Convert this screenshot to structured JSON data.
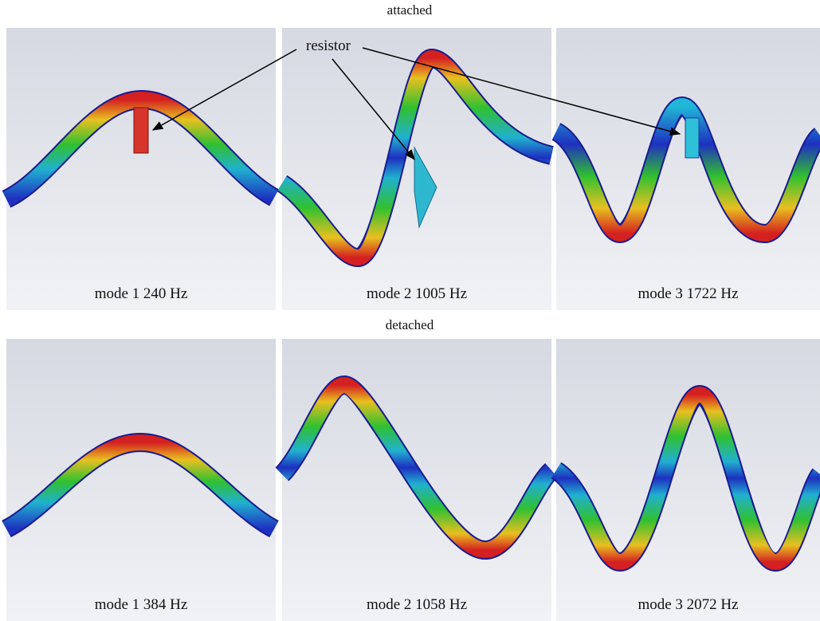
{
  "sections": [
    {
      "title": "attached",
      "panels": [
        {
          "label": "mode 1 240 Hz"
        },
        {
          "label": "mode 2 1005 Hz"
        },
        {
          "label": "mode 3 1722 Hz"
        }
      ]
    },
    {
      "title": "detached",
      "panels": [
        {
          "label": "mode 1 384 Hz"
        },
        {
          "label": "mode 2 1058 Hz"
        },
        {
          "label": "mode 3 2072 Hz"
        }
      ]
    }
  ],
  "annotation": "resistor"
}
